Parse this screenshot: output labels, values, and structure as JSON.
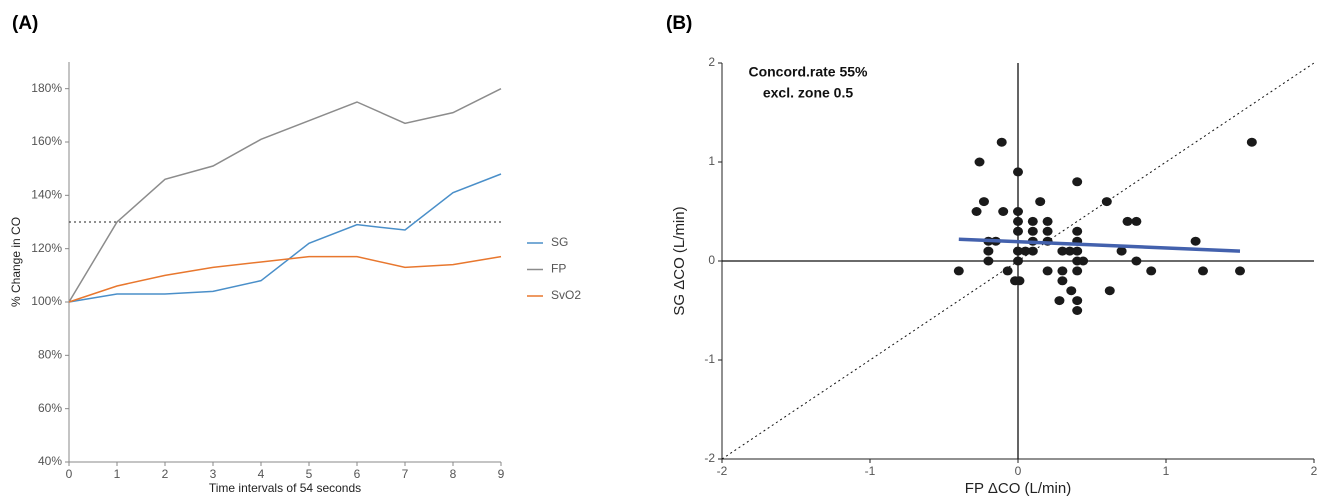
{
  "chart_data": [
    {
      "type": "line",
      "panel_label": "(A)",
      "x_label": "Time intervals of 54 seconds",
      "y_label": "% Change in CO",
      "x": [
        0,
        1,
        2,
        3,
        4,
        5,
        6,
        7,
        8,
        9
      ],
      "series": [
        {
          "name": "SG",
          "color": "#4a8fc9",
          "values": [
            100,
            103,
            103,
            104,
            108,
            122,
            129,
            127,
            141,
            148
          ]
        },
        {
          "name": "FP",
          "color": "#8c8c8c",
          "values": [
            100,
            130,
            146,
            151,
            161,
            168,
            175,
            167,
            171,
            180
          ]
        },
        {
          "name": "SvO2",
          "color": "#e8772e",
          "values": [
            100,
            106,
            110,
            113,
            115,
            117,
            117,
            113,
            114,
            117
          ]
        }
      ],
      "reference_line": 130,
      "xlim": [
        0,
        9
      ],
      "xticks": [
        0,
        1,
        2,
        3,
        4,
        5,
        6,
        7,
        8,
        9
      ],
      "ylim": [
        40,
        190
      ],
      "yticks": [
        {
          "value": 40,
          "label": "40%"
        },
        {
          "value": 60,
          "label": "60%"
        },
        {
          "value": 80,
          "label": "80%"
        },
        {
          "value": 100,
          "label": "100%"
        },
        {
          "value": 120,
          "label": "120%"
        },
        {
          "value": 140,
          "label": "140%"
        },
        {
          "value": 160,
          "label": "160%"
        },
        {
          "value": 180,
          "label": "180%"
        }
      ],
      "legend": "right"
    },
    {
      "type": "scatter",
      "panel_label": "(B)",
      "x_label": "FP ΔCO (L/min)",
      "y_label": "SG ΔCO (L/min)",
      "annotations": [
        "Concord.rate 55%",
        "excl. zone 0.5"
      ],
      "color": "#1a1a1a",
      "x": [
        -0.4,
        -0.11,
        -0.26,
        -0.23,
        -0.28,
        -0.2,
        -0.2,
        -0.2,
        -0.15,
        -0.1,
        -0.07,
        -0.02,
        0.01,
        0,
        0,
        0,
        0,
        0,
        0,
        0.05,
        0.1,
        0.1,
        0.1,
        0.1,
        0.15,
        0.2,
        0.2,
        0.2,
        0.2,
        0.28,
        0.3,
        0.3,
        0.3,
        0.35,
        0.4,
        0.4,
        0.4,
        0.4,
        0.4,
        0.4,
        0.36,
        0.4,
        0.4,
        0.44,
        0.6,
        0.62,
        0.7,
        0.74,
        0.8,
        0.8,
        0.9,
        1.2,
        1.25,
        1.5,
        1.58
      ],
      "y": [
        -0.1,
        1.2,
        1.0,
        0.6,
        0.5,
        0.1,
        0,
        0.2,
        0.2,
        0.5,
        -0.1,
        -0.2,
        -0.2,
        0.9,
        0.5,
        0.4,
        0.3,
        0.1,
        0,
        0.1,
        0.1,
        0.4,
        0.3,
        0.2,
        0.6,
        0.4,
        0.3,
        0.2,
        -0.1,
        -0.4,
        -0.1,
        -0.2,
        0.1,
        0.1,
        0.8,
        0.3,
        0.2,
        0.1,
        0,
        -0.1,
        -0.3,
        -0.4,
        -0.5,
        0,
        0.6,
        -0.3,
        0.1,
        0.4,
        0.4,
        0,
        -0.1,
        0.2,
        -0.1,
        -0.1,
        1.2
      ],
      "regression": {
        "color": "#4361ad",
        "x": [
          -0.4,
          1.5
        ],
        "y": [
          0.22,
          0.1
        ]
      },
      "identity_line": true,
      "zero_lines": true,
      "xlim": [
        -2,
        2
      ],
      "xticks": [
        -2,
        -1,
        0,
        1,
        2
      ],
      "ylim": [
        -2,
        2
      ],
      "yticks": [
        -2,
        -1,
        0,
        1,
        2
      ]
    }
  ]
}
